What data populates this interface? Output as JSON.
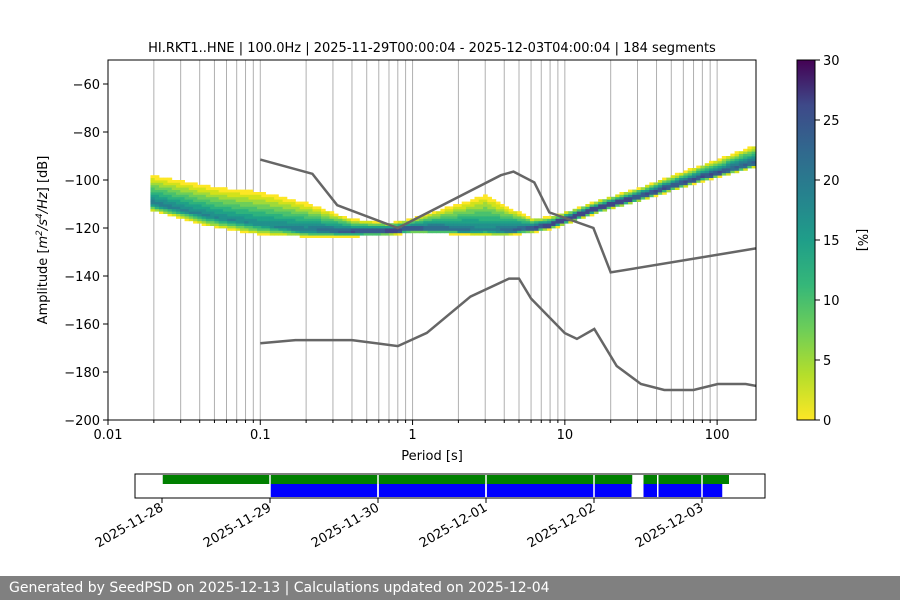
{
  "chart_data": [
    {
      "type": "heatmap",
      "title": "HI.RKT1..HNE | 100.0Hz | 2025-11-29T00:00:04 - 2025-12-03T04:00:04 | 184 segments",
      "xlabel": "Period [s]",
      "ylabel_parts": [
        "Amplitude [",
        "m",
        "2",
        "/s",
        "4",
        "/Hz",
        "] [dB]"
      ],
      "xscale": "log",
      "xlim": [
        0.01,
        180
      ],
      "ylim": [
        -200,
        -50
      ],
      "x_ticks": [
        0.01,
        0.1,
        1,
        10,
        100
      ],
      "x_tick_labels": [
        "0.01",
        "0.1",
        "1",
        "10",
        "100"
      ],
      "y_ticks": [
        -200,
        -180,
        -160,
        -140,
        -120,
        -100,
        -80,
        -60
      ],
      "y_tick_labels": [
        "−200",
        "−180",
        "−160",
        "−140",
        "−120",
        "−100",
        "−80",
        "−60"
      ],
      "grid": "x-minor-and-major",
      "colorbar": {
        "label": "[%]",
        "range": [
          0,
          30
        ],
        "ticks": [
          0,
          5,
          10,
          15,
          20,
          25,
          30
        ],
        "tick_labels": [
          "0",
          "5",
          "10",
          "15",
          "20",
          "25",
          "30"
        ],
        "colormap": "viridis_r"
      },
      "noise_model_high": {
        "x": [
          0.1,
          0.22,
          0.32,
          0.8,
          3.8,
          4.6,
          6.3,
          7.9,
          15.4,
          20,
          180
        ],
        "y": [
          -91.5,
          -97.4,
          -110.5,
          -120,
          -98,
          -96.5,
          -101,
          -113.5,
          -120,
          -138.5,
          -128.5
        ]
      },
      "noise_model_low": {
        "x": [
          0.1,
          0.17,
          0.4,
          0.8,
          1.24,
          2.4,
          4.3,
          5,
          6,
          10,
          12,
          15.6,
          21.9,
          31.6,
          45,
          70,
          101,
          154,
          180
        ],
        "y": [
          -168,
          -166.7,
          -166.7,
          -169.2,
          -163.7,
          -148.6,
          -141.1,
          -141.1,
          -149.4,
          -163.8,
          -166.2,
          -162.1,
          -177.5,
          -185,
          -187.5,
          -187.5,
          -185,
          -185,
          -185.8
        ]
      },
      "psd_density": {
        "note_scale": "percent",
        "mode_curve": {
          "x": [
            0.019,
            0.05,
            0.1,
            0.2,
            0.4,
            0.7,
            1,
            2,
            4,
            6,
            8,
            10,
            15,
            20,
            30,
            50,
            80,
            120,
            180
          ],
          "y": [
            -110,
            -116,
            -119,
            -121.5,
            -122,
            -121.5,
            -120.5,
            -121,
            -121.5,
            -120.5,
            -119,
            -117,
            -113,
            -110.5,
            -107.5,
            -103,
            -99,
            -96,
            -93
          ]
        },
        "spread_db": {
          "x": [
            0.019,
            0.05,
            0.1,
            0.2,
            0.4,
            0.7,
            1,
            2,
            3,
            4,
            6,
            8,
            10,
            20,
            50,
            100,
            180
          ],
          "upper": [
            11,
            12,
            13,
            11,
            5,
            3,
            4,
            10,
            14,
            10,
            4,
            3,
            3,
            3,
            4,
            5,
            7
          ],
          "lower": [
            3,
            4,
            4,
            2.5,
            2,
            2,
            2,
            2,
            2,
            2,
            2,
            2,
            2,
            2,
            2,
            2,
            2
          ]
        }
      }
    },
    {
      "type": "timeline",
      "x_tick_labels": [
        "2025-11-28",
        "2025-11-29",
        "2025-11-30",
        "2025-12-01",
        "2025-12-02",
        "2025-12-03"
      ],
      "xlim": [
        "2025-11-27T18:00",
        "2025-12-03T14:00"
      ],
      "colors": {
        "green": "#008000",
        "blue": "#0000ff"
      },
      "green_segments": [
        [
          "2025-11-28T00:00",
          "2025-12-02T08:30"
        ],
        [
          "2025-12-02T11:00",
          "2025-12-02T14:00"
        ],
        [
          "2025-12-02T14:20",
          "2025-12-03T06:00"
        ]
      ],
      "blue_segments": [
        [
          "2025-11-29T00:00",
          "2025-11-29T23:50"
        ],
        [
          "2025-11-30T00:10",
          "2025-11-30T23:50"
        ],
        [
          "2025-12-01T00:10",
          "2025-12-02T08:20"
        ],
        [
          "2025-12-02T11:00",
          "2025-12-02T14:00"
        ],
        [
          "2025-12-02T14:20",
          "2025-12-03T04:30"
        ]
      ]
    }
  ],
  "footer": {
    "text": "Generated by SeedPSD on 2025-12-13 | Calculations updated on 2025-12-04"
  }
}
